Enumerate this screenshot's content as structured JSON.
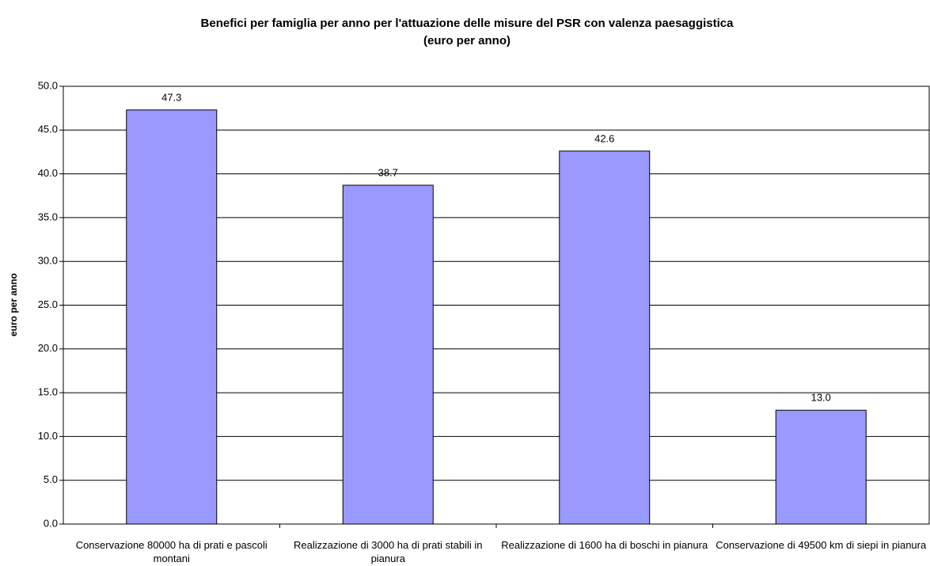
{
  "chart_data": {
    "type": "bar",
    "title": "Benefici per famiglia per anno per l'attuazione delle misure del PSR con valenza paesaggistica",
    "subtitle": "(euro per anno)",
    "y_label": "euro per anno",
    "categories": [
      "Conservazione 80000 ha di prati e pascoli montani",
      "Realizzazione di 3000 ha di prati stabili in pianura",
      "Realizzazione di 1600 ha di boschi in pianura",
      "Conservazione di 49500 km di siepi in pianura"
    ],
    "values": [
      47.3,
      38.7,
      42.6,
      13
    ],
    "value_labels": [
      "47.3",
      "38.7",
      "42.6",
      "13.0"
    ],
    "color": "#9999ff",
    "ylim": [
      0,
      50
    ],
    "yticks": [
      {
        "value": 0,
        "label": "0.0"
      },
      {
        "value": 5,
        "label": "5.0"
      },
      {
        "value": 10,
        "label": "10.0"
      },
      {
        "value": 15,
        "label": "15.0"
      },
      {
        "value": 20,
        "label": "20.0"
      },
      {
        "value": 25,
        "label": "25.0"
      },
      {
        "value": 30,
        "label": "30.0"
      },
      {
        "value": 35,
        "label": "35.0"
      },
      {
        "value": 40,
        "label": "40.0"
      },
      {
        "value": 45,
        "label": "45.0"
      },
      {
        "value": 50,
        "label": "50.0"
      }
    ],
    "grid": true
  }
}
